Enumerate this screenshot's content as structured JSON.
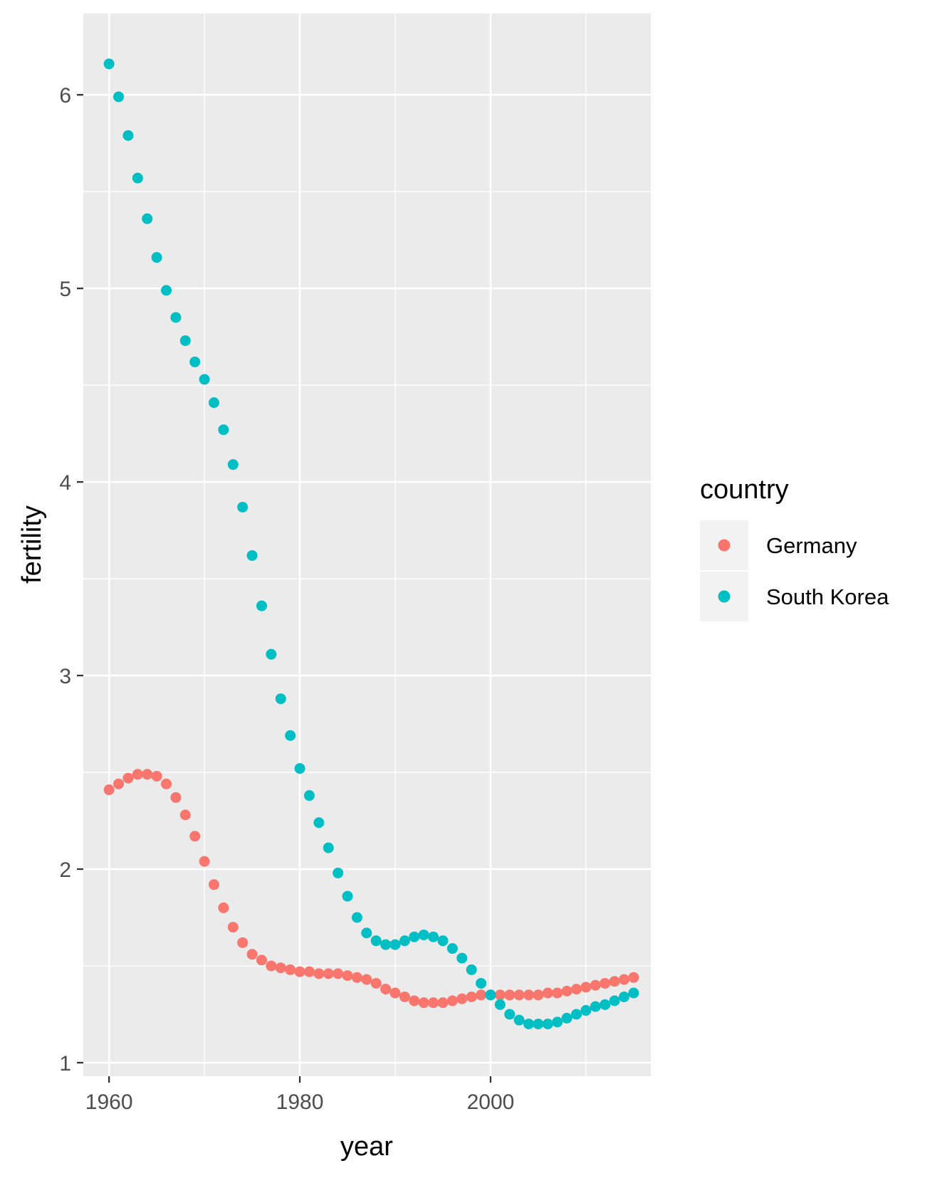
{
  "chart_data": {
    "type": "scatter",
    "title": "",
    "xlabel": "year",
    "ylabel": "fertility",
    "xlim": [
      1957.3,
      2016.8
    ],
    "ylim": [
      0.93,
      6.42
    ],
    "x_ticks": [
      1960,
      1980,
      2000
    ],
    "y_ticks": [
      1,
      2,
      3,
      4,
      5,
      6
    ],
    "grid": true,
    "legend": {
      "title": "country",
      "position": "right"
    },
    "series": [
      {
        "name": "Germany",
        "color": "#F8766D",
        "x": [
          1960,
          1961,
          1962,
          1963,
          1964,
          1965,
          1966,
          1967,
          1968,
          1969,
          1970,
          1971,
          1972,
          1973,
          1974,
          1975,
          1976,
          1977,
          1978,
          1979,
          1980,
          1981,
          1982,
          1983,
          1984,
          1985,
          1986,
          1987,
          1988,
          1989,
          1990,
          1991,
          1992,
          1993,
          1994,
          1995,
          1996,
          1997,
          1998,
          1999,
          2000,
          2001,
          2002,
          2003,
          2004,
          2005,
          2006,
          2007,
          2008,
          2009,
          2010,
          2011,
          2012,
          2013,
          2014,
          2015
        ],
        "y": [
          2.41,
          2.44,
          2.47,
          2.49,
          2.49,
          2.48,
          2.44,
          2.37,
          2.28,
          2.17,
          2.04,
          1.92,
          1.8,
          1.7,
          1.62,
          1.56,
          1.53,
          1.5,
          1.49,
          1.48,
          1.47,
          1.47,
          1.46,
          1.46,
          1.46,
          1.45,
          1.44,
          1.43,
          1.41,
          1.38,
          1.36,
          1.34,
          1.32,
          1.31,
          1.31,
          1.31,
          1.32,
          1.33,
          1.34,
          1.35,
          1.35,
          1.35,
          1.35,
          1.35,
          1.35,
          1.35,
          1.36,
          1.36,
          1.37,
          1.38,
          1.39,
          1.4,
          1.41,
          1.42,
          1.43,
          1.44
        ]
      },
      {
        "name": "South Korea",
        "color": "#00BFC4",
        "x": [
          1960,
          1961,
          1962,
          1963,
          1964,
          1965,
          1966,
          1967,
          1968,
          1969,
          1970,
          1971,
          1972,
          1973,
          1974,
          1975,
          1976,
          1977,
          1978,
          1979,
          1980,
          1981,
          1982,
          1983,
          1984,
          1985,
          1986,
          1987,
          1988,
          1989,
          1990,
          1991,
          1992,
          1993,
          1994,
          1995,
          1996,
          1997,
          1998,
          1999,
          2000,
          2001,
          2002,
          2003,
          2004,
          2005,
          2006,
          2007,
          2008,
          2009,
          2010,
          2011,
          2012,
          2013,
          2014,
          2015
        ],
        "y": [
          6.16,
          5.99,
          5.79,
          5.57,
          5.36,
          5.16,
          4.99,
          4.85,
          4.73,
          4.62,
          4.53,
          4.41,
          4.27,
          4.09,
          3.87,
          3.62,
          3.36,
          3.11,
          2.88,
          2.69,
          2.52,
          2.38,
          2.24,
          2.11,
          1.98,
          1.86,
          1.75,
          1.67,
          1.63,
          1.61,
          1.61,
          1.63,
          1.65,
          1.66,
          1.65,
          1.63,
          1.59,
          1.54,
          1.48,
          1.41,
          1.35,
          1.3,
          1.25,
          1.22,
          1.2,
          1.2,
          1.2,
          1.21,
          1.23,
          1.25,
          1.27,
          1.29,
          1.3,
          1.32,
          1.34,
          1.36
        ]
      }
    ]
  }
}
